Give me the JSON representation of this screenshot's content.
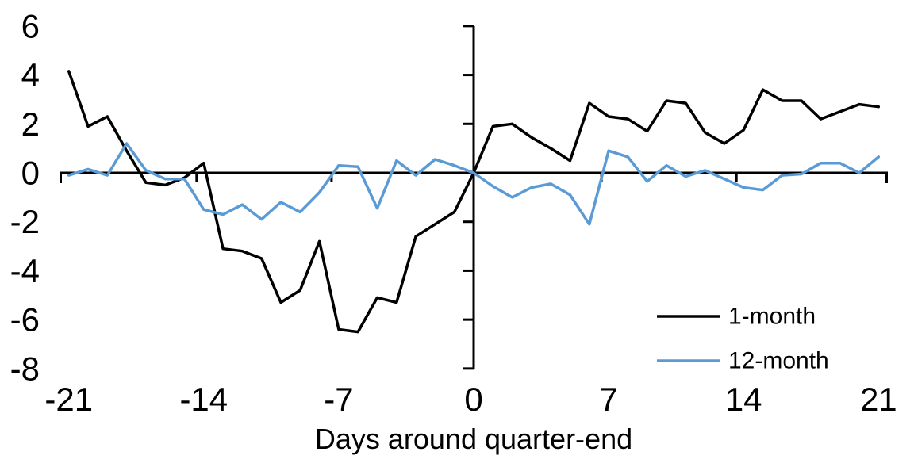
{
  "chart_data": {
    "type": "line",
    "title": "",
    "xlabel": "Days around quarter-end",
    "ylabel": "",
    "xlim": [
      -21,
      21
    ],
    "ylim": [
      -8,
      6
    ],
    "x_ticks": [
      -21,
      -14,
      -7,
      0,
      7,
      14,
      21
    ],
    "y_ticks": [
      6,
      4,
      2,
      0,
      -2,
      -4,
      -6,
      -8
    ],
    "grid": false,
    "legend_position": "lower-right",
    "x": [
      -21,
      -20,
      -19,
      -18,
      -17,
      -16,
      -15,
      -14,
      -13,
      -12,
      -11,
      -10,
      -9,
      -8,
      -7,
      -6,
      -5,
      -4,
      -3,
      -2,
      -1,
      0,
      1,
      2,
      3,
      4,
      5,
      6,
      7,
      8,
      9,
      10,
      11,
      12,
      13,
      14,
      15,
      16,
      17,
      18,
      19,
      20,
      21
    ],
    "series": [
      {
        "name": "1-month",
        "color": "#000000",
        "values": [
          4.15,
          1.9,
          2.3,
          0.9,
          -0.4,
          -0.5,
          -0.2,
          0.4,
          -3.1,
          -3.2,
          -3.5,
          -5.3,
          -4.8,
          -2.8,
          -6.4,
          -6.5,
          -5.1,
          -5.3,
          -2.6,
          -2.1,
          -1.6,
          0,
          1.9,
          2.0,
          1.45,
          1.0,
          0.5,
          2.85,
          2.3,
          2.2,
          1.7,
          2.95,
          2.85,
          1.65,
          1.2,
          1.75,
          3.4,
          2.95,
          2.95,
          2.2,
          2.5,
          2.8,
          2.7
        ]
      },
      {
        "name": "12-month",
        "color": "#5B9BD5",
        "values": [
          -0.1,
          0.15,
          -0.1,
          1.2,
          0.1,
          -0.25,
          -0.25,
          -1.5,
          -1.7,
          -1.3,
          -1.9,
          -1.2,
          -1.6,
          -0.8,
          0.3,
          0.25,
          -1.45,
          0.5,
          -0.1,
          0.55,
          0.3,
          0,
          -0.55,
          -1.0,
          -0.6,
          -0.45,
          -0.9,
          -2.1,
          0.9,
          0.65,
          -0.35,
          0.3,
          -0.15,
          0.1,
          -0.25,
          -0.6,
          -0.7,
          -0.1,
          -0.05,
          0.4,
          0.4,
          0.0,
          0.65
        ]
      }
    ]
  }
}
